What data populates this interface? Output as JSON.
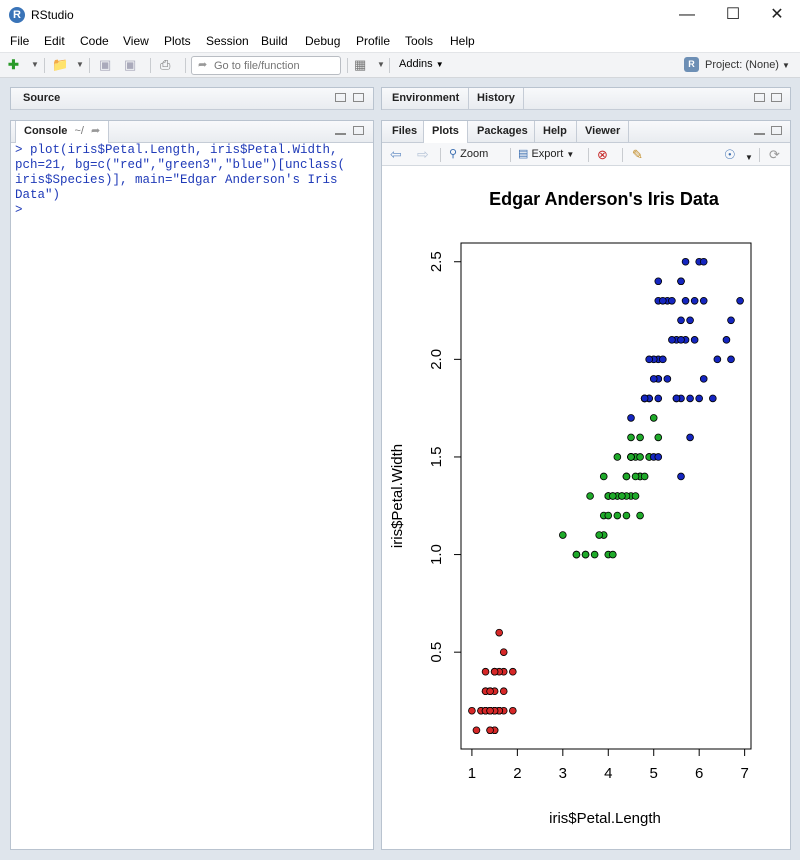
{
  "window": {
    "title": "RStudio",
    "logo_letter": "R"
  },
  "menu": [
    "File",
    "Edit",
    "Code",
    "View",
    "Plots",
    "Session",
    "Build",
    "Debug",
    "Profile",
    "Tools",
    "Help"
  ],
  "toolbar": {
    "goto_placeholder": "Go to file/function",
    "addins_label": "Addins",
    "project_label": "Project: (None)"
  },
  "source_pane": {
    "tab_label": "Source"
  },
  "console_pane": {
    "tab_label": "Console",
    "path": "~/",
    "lines": [
      "> plot(iris$Petal.Length, iris$Petal.Width,",
      "pch=21, bg=c(\"red\",\"green3\",\"blue\")[unclass(",
      "iris$Species)], main=\"Edgar Anderson's Iris",
      "Data\")"
    ],
    "prompt": ">"
  },
  "env_pane": {
    "tabs": [
      "Environment",
      "History"
    ]
  },
  "files_pane": {
    "tabs": [
      "Files",
      "Plots",
      "Packages",
      "Help",
      "Viewer"
    ],
    "active_tab": "Plots",
    "toolbar": {
      "zoom_label": "Zoom",
      "export_label": "Export"
    }
  },
  "colors": {
    "red": "#d62828",
    "green": "#1faa2a",
    "blue": "#1526c0"
  },
  "chart_data": {
    "type": "scatter",
    "title": "Edgar Anderson's Iris Data",
    "xlabel": "iris$Petal.Length",
    "ylabel": "iris$Petal.Width",
    "xlim": [
      0.76,
      7.14
    ],
    "ylim": [
      0.004,
      2.596
    ],
    "xticks": [
      "1",
      "2",
      "3",
      "4",
      "5",
      "6",
      "7"
    ],
    "yticks": [
      "0.5",
      "1.0",
      "1.5",
      "2.0",
      "2.5"
    ],
    "grid": false,
    "series": [
      {
        "color": "red",
        "points": [
          [
            1.4,
            0.2
          ],
          [
            1.4,
            0.2
          ],
          [
            1.3,
            0.2
          ],
          [
            1.5,
            0.2
          ],
          [
            1.4,
            0.2
          ],
          [
            1.7,
            0.4
          ],
          [
            1.4,
            0.3
          ],
          [
            1.5,
            0.2
          ],
          [
            1.4,
            0.2
          ],
          [
            1.5,
            0.1
          ],
          [
            1.5,
            0.2
          ],
          [
            1.6,
            0.2
          ],
          [
            1.4,
            0.1
          ],
          [
            1.1,
            0.1
          ],
          [
            1.2,
            0.2
          ],
          [
            1.5,
            0.4
          ],
          [
            1.3,
            0.4
          ],
          [
            1.4,
            0.3
          ],
          [
            1.7,
            0.3
          ],
          [
            1.5,
            0.3
          ],
          [
            1.7,
            0.2
          ],
          [
            1.5,
            0.4
          ],
          [
            1.0,
            0.2
          ],
          [
            1.7,
            0.5
          ],
          [
            1.9,
            0.2
          ],
          [
            1.6,
            0.2
          ],
          [
            1.6,
            0.4
          ],
          [
            1.5,
            0.2
          ],
          [
            1.4,
            0.2
          ],
          [
            1.6,
            0.2
          ],
          [
            1.6,
            0.2
          ],
          [
            1.5,
            0.4
          ],
          [
            1.5,
            0.1
          ],
          [
            1.4,
            0.2
          ],
          [
            1.5,
            0.2
          ],
          [
            1.2,
            0.2
          ],
          [
            1.3,
            0.2
          ],
          [
            1.4,
            0.1
          ],
          [
            1.3,
            0.2
          ],
          [
            1.5,
            0.2
          ],
          [
            1.3,
            0.3
          ],
          [
            1.3,
            0.3
          ],
          [
            1.3,
            0.2
          ],
          [
            1.6,
            0.6
          ],
          [
            1.9,
            0.4
          ],
          [
            1.4,
            0.3
          ],
          [
            1.6,
            0.2
          ],
          [
            1.4,
            0.2
          ],
          [
            1.5,
            0.2
          ],
          [
            1.4,
            0.2
          ]
        ]
      },
      {
        "color": "green",
        "points": [
          [
            4.7,
            1.4
          ],
          [
            4.5,
            1.5
          ],
          [
            4.9,
            1.5
          ],
          [
            4.0,
            1.3
          ],
          [
            4.6,
            1.5
          ],
          [
            4.5,
            1.3
          ],
          [
            4.7,
            1.6
          ],
          [
            3.3,
            1.0
          ],
          [
            4.6,
            1.3
          ],
          [
            3.9,
            1.4
          ],
          [
            3.5,
            1.0
          ],
          [
            4.2,
            1.5
          ],
          [
            4.0,
            1.0
          ],
          [
            4.7,
            1.4
          ],
          [
            3.6,
            1.3
          ],
          [
            4.4,
            1.4
          ],
          [
            4.5,
            1.5
          ],
          [
            4.1,
            1.0
          ],
          [
            4.5,
            1.5
          ],
          [
            3.9,
            1.1
          ],
          [
            4.8,
            1.8
          ],
          [
            4.0,
            1.3
          ],
          [
            4.9,
            1.5
          ],
          [
            4.7,
            1.2
          ],
          [
            4.3,
            1.3
          ],
          [
            4.4,
            1.4
          ],
          [
            4.8,
            1.4
          ],
          [
            5.0,
            1.7
          ],
          [
            4.5,
            1.5
          ],
          [
            3.5,
            1.0
          ],
          [
            3.8,
            1.1
          ],
          [
            3.7,
            1.0
          ],
          [
            3.9,
            1.2
          ],
          [
            5.1,
            1.6
          ],
          [
            4.5,
            1.5
          ],
          [
            4.5,
            1.6
          ],
          [
            4.7,
            1.5
          ],
          [
            4.4,
            1.3
          ],
          [
            4.1,
            1.3
          ],
          [
            4.0,
            1.3
          ],
          [
            4.4,
            1.2
          ],
          [
            4.6,
            1.4
          ],
          [
            4.0,
            1.2
          ],
          [
            3.3,
            1.0
          ],
          [
            4.2,
            1.3
          ],
          [
            4.2,
            1.2
          ],
          [
            4.2,
            1.3
          ],
          [
            4.3,
            1.3
          ],
          [
            3.0,
            1.1
          ],
          [
            4.1,
            1.3
          ]
        ]
      },
      {
        "color": "blue",
        "points": [
          [
            6.0,
            2.5
          ],
          [
            5.1,
            1.9
          ],
          [
            5.9,
            2.1
          ],
          [
            5.6,
            1.8
          ],
          [
            5.8,
            2.2
          ],
          [
            6.6,
            2.1
          ],
          [
            4.5,
            1.7
          ],
          [
            6.3,
            1.8
          ],
          [
            5.8,
            1.8
          ],
          [
            6.1,
            2.5
          ],
          [
            5.1,
            2.0
          ],
          [
            5.3,
            1.9
          ],
          [
            5.5,
            2.1
          ],
          [
            5.0,
            2.0
          ],
          [
            5.1,
            2.4
          ],
          [
            5.3,
            2.3
          ],
          [
            5.5,
            1.8
          ],
          [
            6.7,
            2.2
          ],
          [
            6.9,
            2.3
          ],
          [
            5.0,
            1.5
          ],
          [
            5.7,
            2.3
          ],
          [
            4.9,
            2.0
          ],
          [
            6.7,
            2.0
          ],
          [
            4.9,
            1.8
          ],
          [
            5.7,
            2.1
          ],
          [
            6.0,
            1.8
          ],
          [
            4.8,
            1.8
          ],
          [
            4.9,
            1.8
          ],
          [
            5.6,
            2.1
          ],
          [
            5.8,
            1.6
          ],
          [
            6.1,
            1.9
          ],
          [
            6.4,
            2.0
          ],
          [
            5.6,
            2.2
          ],
          [
            5.1,
            1.5
          ],
          [
            5.6,
            1.4
          ],
          [
            6.1,
            2.3
          ],
          [
            5.6,
            2.4
          ],
          [
            5.5,
            1.8
          ],
          [
            4.8,
            1.8
          ],
          [
            5.4,
            2.1
          ],
          [
            5.6,
            2.4
          ],
          [
            5.1,
            2.3
          ],
          [
            5.1,
            1.9
          ],
          [
            5.9,
            2.3
          ],
          [
            5.7,
            2.5
          ],
          [
            5.2,
            2.3
          ],
          [
            5.0,
            1.9
          ],
          [
            5.2,
            2.0
          ],
          [
            5.4,
            2.3
          ],
          [
            5.1,
            1.8
          ]
        ]
      }
    ]
  }
}
